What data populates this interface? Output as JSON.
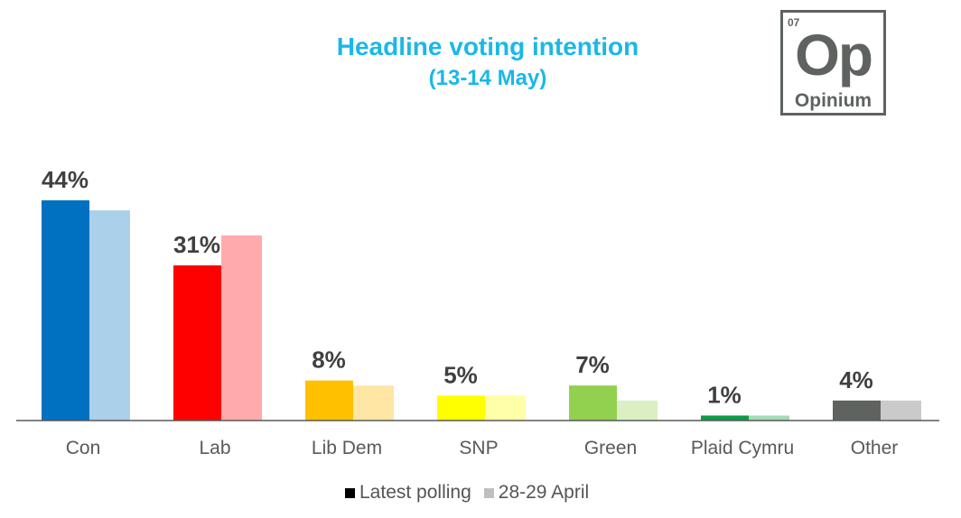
{
  "title": "Headline voting intention",
  "subtitle": "(13-14 May)",
  "logo": {
    "number": "07",
    "symbol": "Op",
    "name": "Opinium"
  },
  "chart_data": {
    "type": "bar",
    "title": "Headline voting intention",
    "subtitle": "(13-14 May)",
    "categories": [
      "Con",
      "Lab",
      "Lib Dem",
      "SNP",
      "Green",
      "Plaid Cymru",
      "Other"
    ],
    "value_labels": [
      "44%",
      "31%",
      "8%",
      "5%",
      "7%",
      "1%",
      "4%"
    ],
    "series": [
      {
        "name": "Latest polling",
        "values": [
          44,
          31,
          8,
          5,
          7,
          1,
          4
        ]
      },
      {
        "name": "28-29 April",
        "values": [
          42,
          37,
          7,
          5,
          4,
          1,
          4
        ]
      }
    ],
    "colors_latest": [
      "#0070C0",
      "#FF0000",
      "#FFC000",
      "#FFFF00",
      "#92D050",
      "#0E9A48",
      "#5E6360"
    ],
    "colors_previous": [
      "#ABD0EA",
      "#FFABAB",
      "#FFE6A5",
      "#FFFFA8",
      "#DBEFC3",
      "#A4DBB6",
      "#CACACA"
    ],
    "ylim": [
      0,
      44
    ],
    "grid": false,
    "legend_position": "bottom",
    "legend_colors": [
      "#000000",
      "#BFBFBF"
    ]
  }
}
